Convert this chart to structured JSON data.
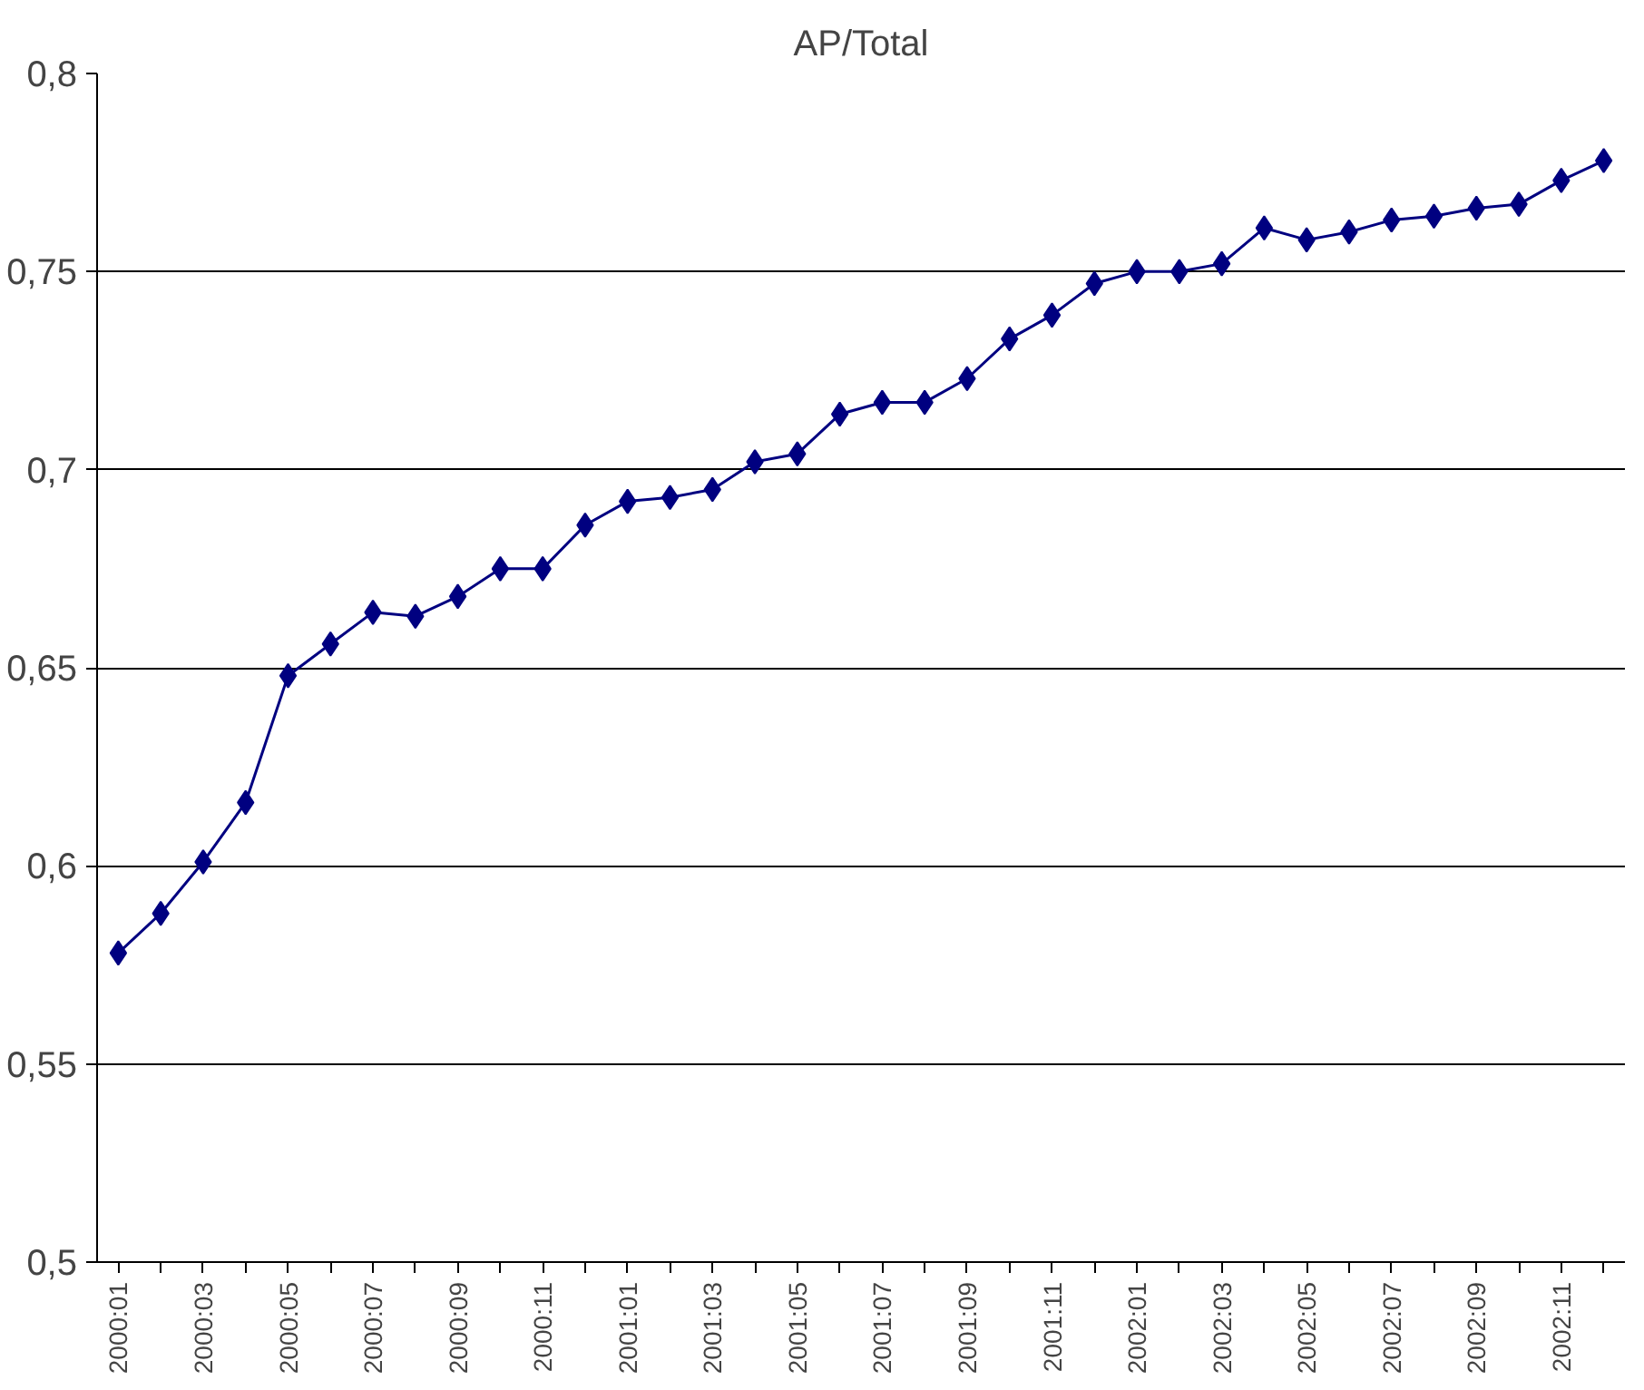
{
  "chart_data": {
    "type": "line",
    "title": "AP/Total",
    "categories": [
      "2000:01",
      null,
      "2000:03",
      null,
      "2000:05",
      null,
      "2000:07",
      null,
      "2000:09",
      null,
      "2000:11",
      null,
      "2001:01",
      null,
      "2001:03",
      null,
      "2001:05",
      null,
      "2001:07",
      null,
      "2001:09",
      null,
      "2001:11",
      null,
      "2002:01",
      null,
      "2002:03",
      null,
      "2002:05",
      null,
      "2002:07",
      null,
      "2002:09",
      null,
      "2002:11",
      null
    ],
    "series": [
      {
        "color": "#000080",
        "values": [
          0.578,
          0.588,
          0.601,
          0.616,
          0.648,
          0.656,
          0.664,
          0.663,
          0.668,
          0.675,
          0.675,
          0.686,
          0.692,
          0.693,
          0.695,
          0.702,
          0.704,
          0.714,
          0.717,
          0.717,
          0.723,
          0.733,
          0.739,
          0.747,
          0.75,
          0.75,
          0.752,
          0.761,
          0.758,
          0.76,
          0.763,
          0.764,
          0.766,
          0.767,
          0.773,
          0.778
        ]
      }
    ],
    "ylim": [
      0.5,
      0.8
    ],
    "yticks": [
      {
        "value": 0.5,
        "label": "0,5"
      },
      {
        "value": 0.55,
        "label": "0,55"
      },
      {
        "value": 0.6,
        "label": "0,6"
      },
      {
        "value": 0.65,
        "label": "0,65"
      },
      {
        "value": 0.7,
        "label": "0,7"
      },
      {
        "value": 0.75,
        "label": "0,75"
      },
      {
        "value": 0.8,
        "label": "0,8"
      }
    ],
    "grid": "y",
    "marker": "diamond",
    "line_style": "solid"
  }
}
